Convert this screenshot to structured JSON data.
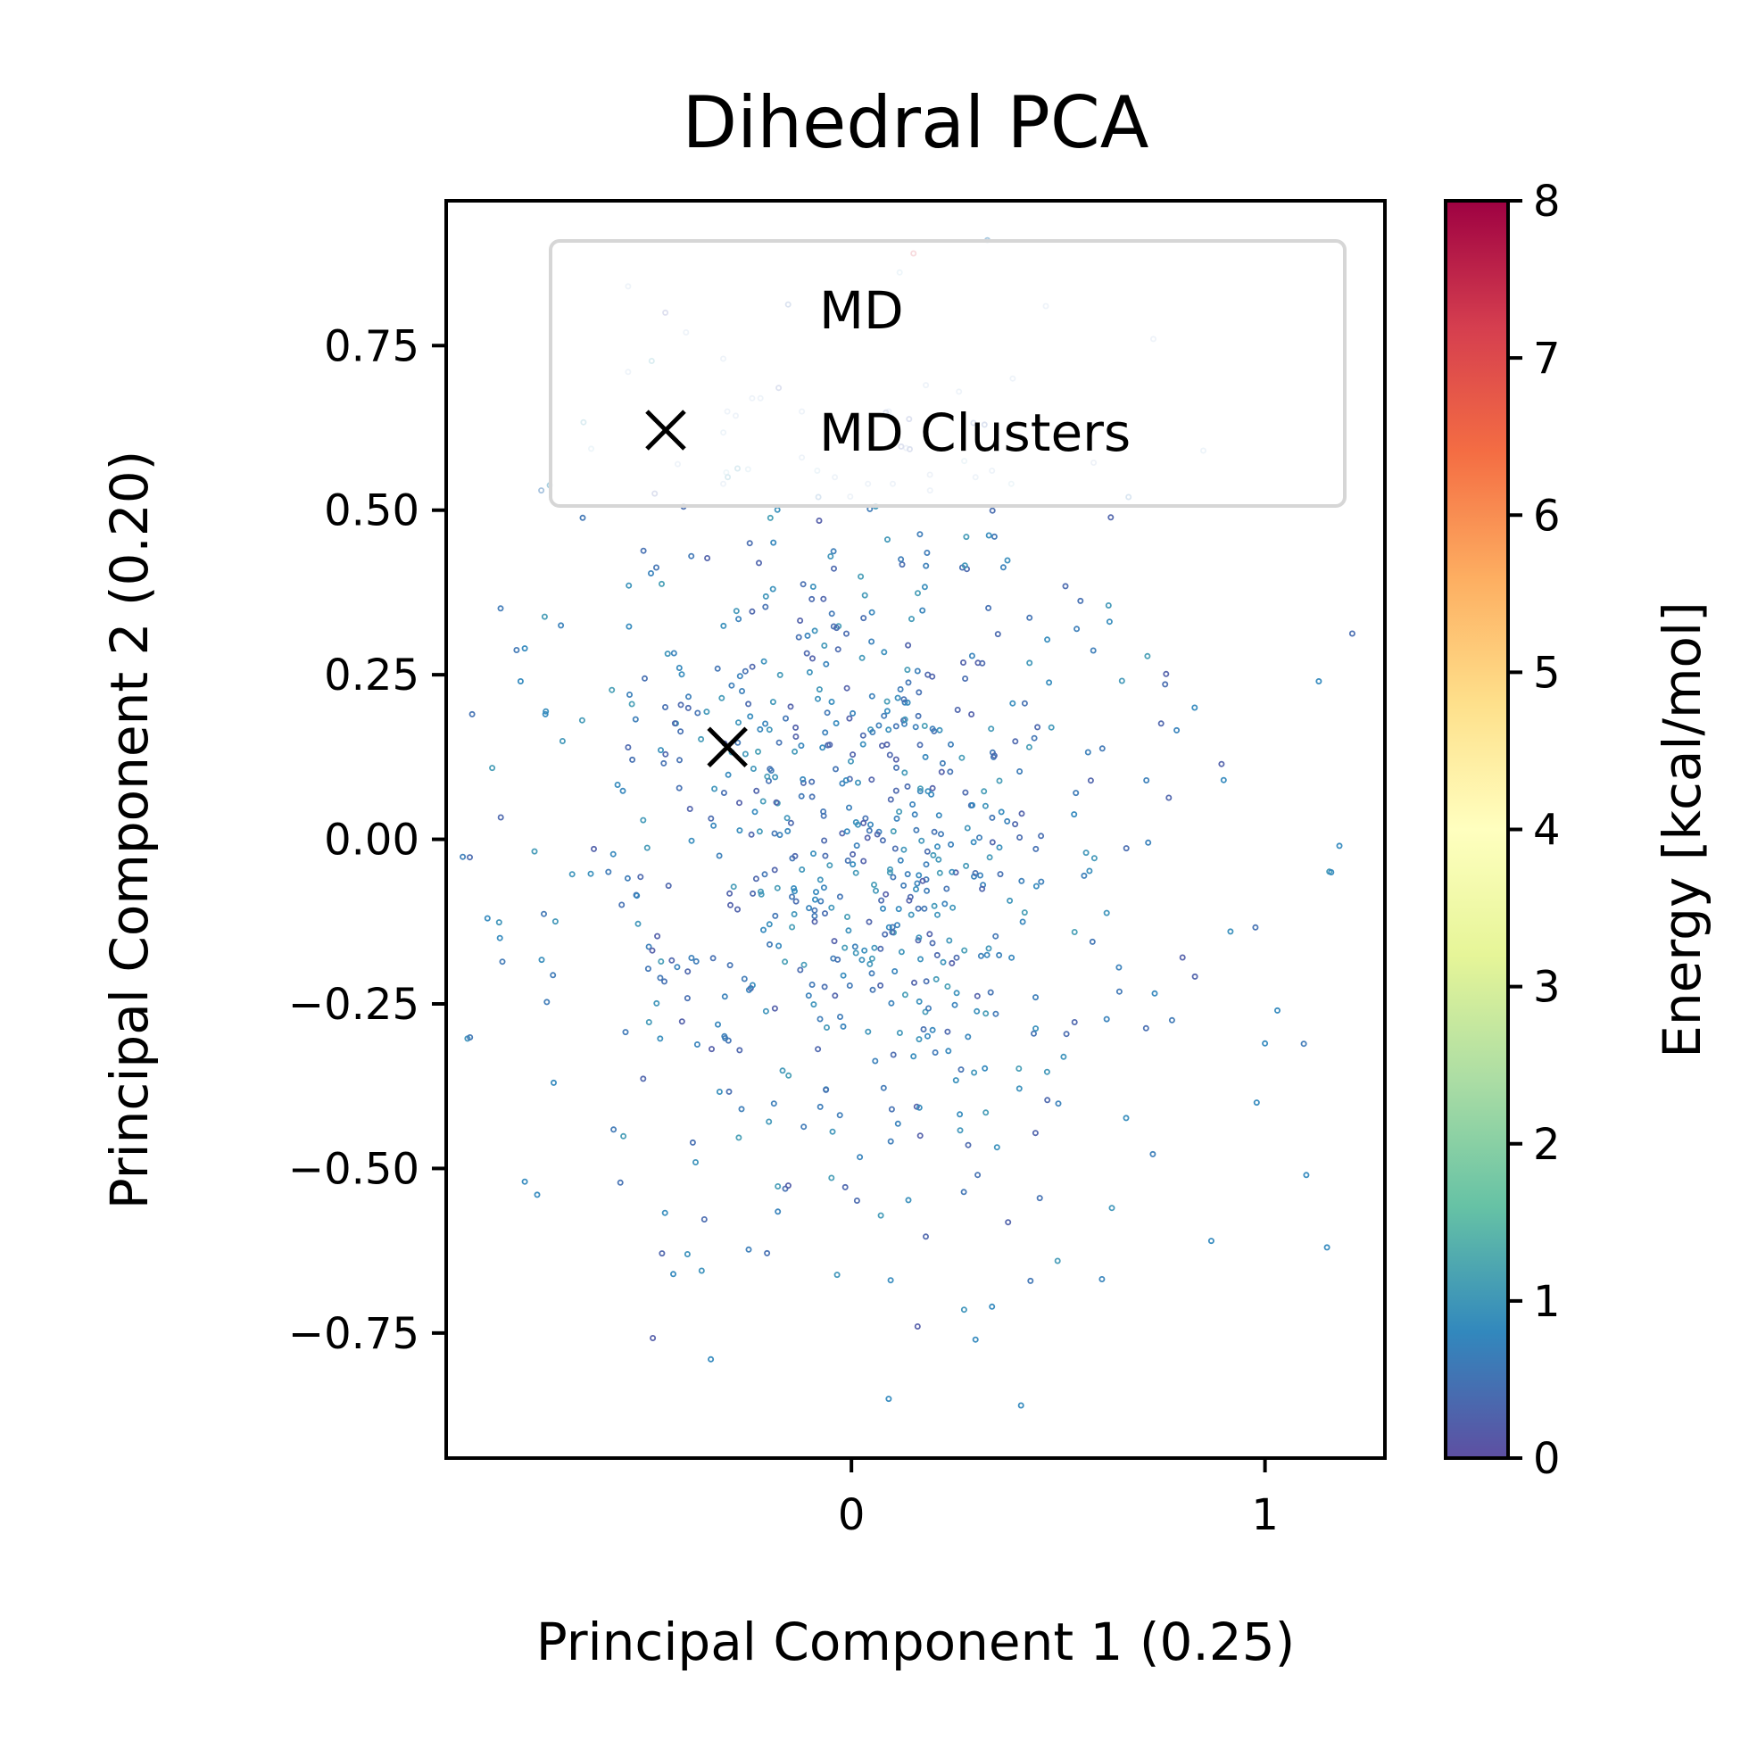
{
  "chart_data": {
    "type": "scatter",
    "title": "Dihedral PCA",
    "xlabel": "Principal Component 1 (0.25)",
    "ylabel": "Principal Component 2 (0.20)",
    "xlim": [
      -0.98,
      1.29
    ],
    "ylim": [
      -0.94,
      0.97
    ],
    "xticks": [
      0,
      1
    ],
    "xtick_labels": [
      "0",
      "1"
    ],
    "yticks": [
      -0.75,
      -0.5,
      -0.25,
      0.0,
      0.25,
      0.5,
      0.75
    ],
    "ytick_labels": [
      "−0.75",
      "−0.50",
      "−0.25",
      "0.00",
      "0.25",
      "0.50",
      "0.75"
    ],
    "grid": false,
    "legend": {
      "placement": "upper-center",
      "entries": [
        "MD",
        "MD Clusters"
      ]
    },
    "colorbar": {
      "label": "Energy [kcal/mol]",
      "range": [
        0,
        8
      ],
      "ticks": [
        0,
        1,
        2,
        3,
        4,
        5,
        6,
        7,
        8
      ],
      "tick_labels": [
        "0",
        "1",
        "2",
        "3",
        "4",
        "5",
        "6",
        "7",
        "8"
      ],
      "colormap": "Spectral_r",
      "colors": [
        "#5e4fa2",
        "#3288bd",
        "#66c2a5",
        "#abdda4",
        "#e6f598",
        "#ffffbf",
        "#fee08b",
        "#fdae61",
        "#f46d43",
        "#d53e4f",
        "#9e0142"
      ]
    },
    "series": [
      {
        "name": "MD",
        "marker": "hollow-circle",
        "note_points": "energy per point in kcal/mol; [x, y, energy]",
        "points": [
          [
            0.15,
            0.89,
            7.2
          ],
          [
            -0.54,
            0.84,
            0.6
          ],
          [
            -0.45,
            0.8,
            0.2
          ],
          [
            -0.4,
            0.77,
            0.6
          ],
          [
            -0.54,
            0.71,
            0.6
          ],
          [
            -0.31,
            0.73,
            0.6
          ],
          [
            -0.24,
            0.67,
            0.6
          ],
          [
            -0.22,
            0.67,
            0.6
          ],
          [
            0.47,
            0.81,
            0.6
          ],
          [
            0.73,
            0.76,
            0.6
          ],
          [
            0.39,
            0.7,
            0.6
          ],
          [
            0.18,
            0.69,
            0.6
          ],
          [
            0.26,
            0.68,
            0.6
          ],
          [
            0.09,
            0.65,
            0.6
          ],
          [
            -0.3,
            0.65,
            0.6
          ],
          [
            -0.12,
            0.65,
            0.6
          ],
          [
            -0.42,
            0.57,
            0.6
          ],
          [
            -0.31,
            0.54,
            0.6
          ],
          [
            -0.04,
            0.55,
            0.6
          ],
          [
            0.04,
            0.54,
            0.6
          ],
          [
            0.1,
            0.54,
            0.6
          ],
          [
            0.19,
            0.53,
            0.6
          ],
          [
            0.3,
            0.55,
            0.6
          ],
          [
            0.67,
            0.52,
            0.6
          ],
          [
            -0.75,
            0.53,
            0.6
          ],
          [
            -0.12,
            0.58,
            0.6
          ],
          [
            -0.08,
            0.52,
            0.6
          ],
          [
            0.34,
            0.56,
            0.6
          ]
        ],
        "generated_cloud": {
          "count": 720,
          "seed": 7,
          "center": [
            0.02,
            0.0
          ],
          "sd": [
            0.36,
            0.28
          ],
          "energy_range": [
            0.2,
            1.1
          ]
        },
        "scattered_outliers": [
          [
            -0.88,
            -0.12,
            0.8
          ],
          [
            -0.85,
            -0.15,
            0.8
          ],
          [
            -0.79,
            0.29,
            0.8
          ],
          [
            -0.8,
            0.24,
            0.8
          ],
          [
            -0.74,
            0.19,
            0.8
          ],
          [
            -0.79,
            -0.52,
            0.8
          ],
          [
            -0.76,
            -0.54,
            0.8
          ],
          [
            1.13,
            0.24,
            0.8
          ],
          [
            1.18,
            -0.01,
            0.8
          ],
          [
            1.16,
            -0.05,
            0.8
          ],
          [
            1.1,
            -0.51,
            0.8
          ],
          [
            1.15,
            -0.62,
            0.8
          ],
          [
            0.87,
            -0.61,
            0.8
          ],
          [
            1.03,
            -0.26,
            0.8
          ],
          [
            1.0,
            -0.31,
            0.8
          ],
          [
            0.9,
            0.09,
            0.8
          ],
          [
            0.83,
            0.2,
            0.8
          ],
          [
            0.98,
            -0.4,
            0.8
          ],
          [
            0.09,
            -0.85,
            0.8
          ],
          [
            0.41,
            -0.86,
            0.8
          ],
          [
            -0.34,
            -0.79,
            0.8
          ],
          [
            0.16,
            -0.74,
            0.2
          ],
          [
            0.34,
            -0.71,
            0.8
          ],
          [
            0.3,
            -0.76,
            0.8
          ]
        ]
      },
      {
        "name": "MD Clusters",
        "marker": "x",
        "color": "#000000",
        "points": [
          [
            -0.3,
            0.14
          ]
        ]
      }
    ]
  }
}
